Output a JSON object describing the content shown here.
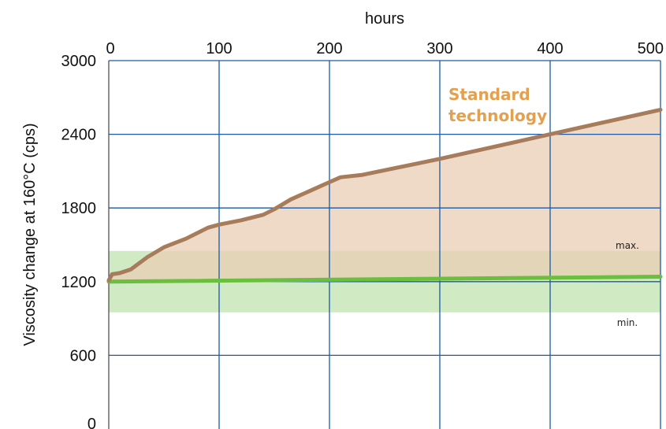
{
  "chart_data": {
    "type": "area",
    "title": "",
    "xlabel": "hours",
    "ylabel": "Viscosity change at 160°C (cps)",
    "x_axis_position": "top",
    "xlim": [
      0,
      500
    ],
    "ylim": [
      0,
      3000
    ],
    "x_ticks": [
      0,
      100,
      200,
      300,
      400,
      500
    ],
    "y_ticks": [
      0,
      600,
      1200,
      1800,
      2400,
      3000
    ],
    "x_tick_labels": [
      "0",
      "100",
      "200",
      "300",
      "400",
      "500"
    ],
    "y_tick_labels": [
      "0",
      "600",
      "1200",
      "1800",
      "2400",
      "3000"
    ],
    "grid": true,
    "series": [
      {
        "name": "Standard technology",
        "color": "#a67c5b",
        "fill": "#e8cdb4",
        "points": [
          [
            0,
            1210
          ],
          [
            3,
            1260
          ],
          [
            10,
            1270
          ],
          [
            20,
            1300
          ],
          [
            35,
            1400
          ],
          [
            50,
            1480
          ],
          [
            70,
            1550
          ],
          [
            90,
            1640
          ],
          [
            100,
            1665
          ],
          [
            120,
            1700
          ],
          [
            140,
            1745
          ],
          [
            150,
            1790
          ],
          [
            165,
            1870
          ],
          [
            185,
            1950
          ],
          [
            200,
            2010
          ],
          [
            210,
            2050
          ],
          [
            230,
            2070
          ],
          [
            300,
            2200
          ],
          [
            400,
            2400
          ],
          [
            500,
            2600
          ]
        ]
      },
      {
        "name": "",
        "color": "#6abf3f",
        "points": [
          [
            0,
            1200
          ],
          [
            500,
            1240
          ]
        ]
      }
    ],
    "band": {
      "min": 950,
      "max": 1450,
      "color": "#c8e6b8",
      "min_label": "min.",
      "max_label": "max."
    },
    "annotation": {
      "text_line1": "Standard",
      "text_line2": "technology",
      "color": "#e3a04e"
    },
    "colors": {
      "grid": "#1a5aa8",
      "axis": "#444444"
    }
  }
}
